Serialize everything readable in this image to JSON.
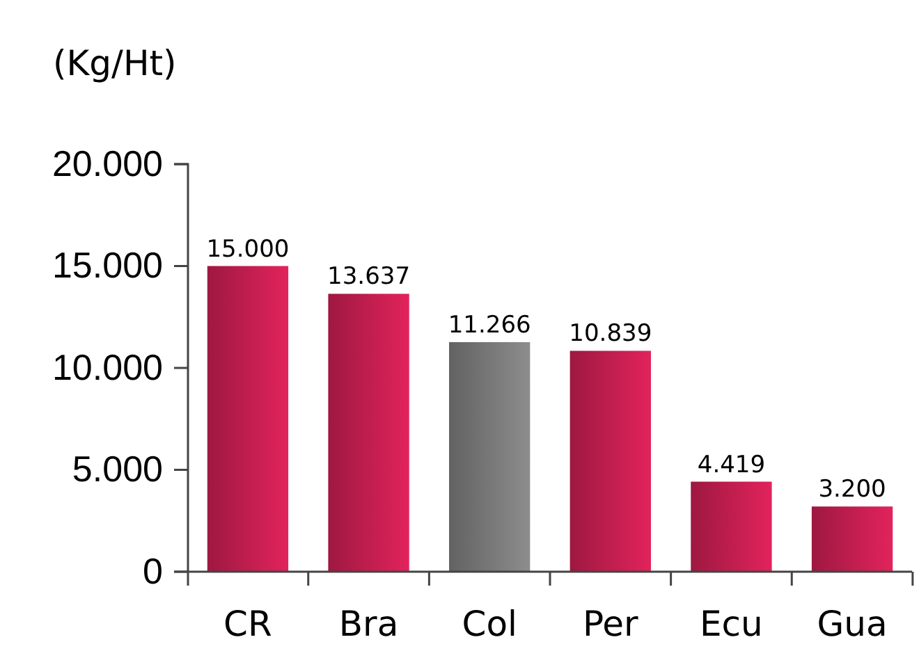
{
  "chart_data": {
    "type": "bar",
    "ylabel": "(Kg/Ht)",
    "categories": [
      "CR",
      "Bra",
      "Col",
      "Per",
      "Ecu",
      "Gua"
    ],
    "values": [
      15000,
      13637,
      11266,
      10839,
      4419,
      3200
    ],
    "value_labels": [
      "15.000",
      "13.637",
      "11.266",
      "10.839",
      "4.419",
      "3.200"
    ],
    "colors": [
      "#c41e50",
      "#c41e50",
      "#7a7a7a",
      "#c41e50",
      "#c41e50",
      "#c41e50"
    ],
    "ylim": [
      0,
      20000
    ],
    "yticks": [
      {
        "value": 0,
        "label": "0"
      },
      {
        "value": 5000,
        "label": "5.000"
      },
      {
        "value": 10000,
        "label": "10.000"
      },
      {
        "value": 15000,
        "label": "15.000"
      },
      {
        "value": 20000,
        "label": "20.000"
      }
    ],
    "grid": false
  }
}
